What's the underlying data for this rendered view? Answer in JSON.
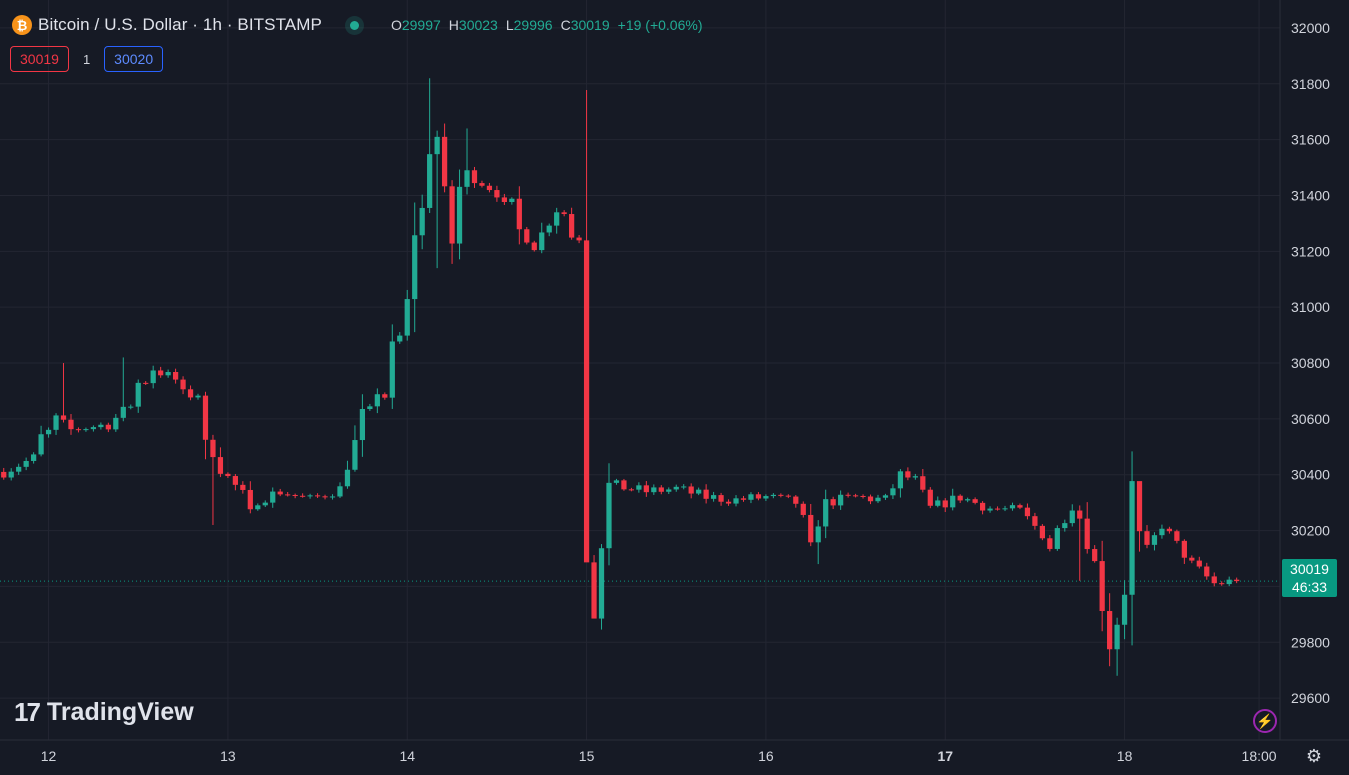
{
  "header": {
    "symbol_icon": "bitcoin-icon",
    "title": "Bitcoin / U.S. Dollar · 1h · BITSTAMP",
    "ohlc": {
      "o_label": "O",
      "o": "29997",
      "h_label": "H",
      "h": "30023",
      "l_label": "L",
      "l": "29996",
      "c_label": "C",
      "c": "30019",
      "change": "+19 (+0.06%)"
    }
  },
  "quote": {
    "bid": "30019",
    "spread": "1",
    "ask": "30020"
  },
  "price_tag": {
    "price": "30019",
    "countdown": "46:33"
  },
  "brand": {
    "name": "TradingView",
    "icon": "tradingview-logo-icon"
  },
  "toolbar": {
    "lightning_icon": "lightning-icon",
    "settings_icon": "gear-icon"
  },
  "colors": {
    "background": "#161a25",
    "grid": "#232632",
    "up": "#22ab94",
    "down": "#f23645",
    "text": "#d1d4dc"
  },
  "chart_data": {
    "type": "candlestick",
    "title": "Bitcoin / U.S. Dollar · 1h · BITSTAMP",
    "xlabel": "",
    "ylabel": "",
    "ylim": [
      29450,
      32100
    ],
    "y_ticks": [
      29600,
      29800,
      30000,
      30200,
      30400,
      30600,
      30800,
      31000,
      31200,
      31400,
      31600,
      31800,
      32000
    ],
    "x_ticks": [
      {
        "label": "12",
        "hour": 4
      },
      {
        "label": "13",
        "hour": 28
      },
      {
        "label": "14",
        "hour": 52
      },
      {
        "label": "15",
        "hour": 76
      },
      {
        "label": "16",
        "hour": 100
      },
      {
        "label": "17",
        "hour": 124,
        "bold": true
      },
      {
        "label": "18",
        "hour": 148
      },
      {
        "label": "18:00",
        "hour": 166
      }
    ],
    "x_range_hours": [
      -2.5,
      168.8
    ],
    "last_price": 30019,
    "anchors": [
      [
        -2,
        30410
      ],
      [
        2,
        30460
      ],
      [
        5,
        30600
      ],
      [
        7,
        30560
      ],
      [
        9,
        30570
      ],
      [
        12,
        30580
      ],
      [
        15,
        30650
      ],
      [
        18,
        30780
      ],
      [
        21,
        30740
      ],
      [
        24,
        30690
      ],
      [
        27,
        30420
      ],
      [
        31,
        30300
      ],
      [
        35,
        30340
      ],
      [
        39,
        30310
      ],
      [
        43,
        30350
      ],
      [
        46,
        30600
      ],
      [
        49,
        30680
      ],
      [
        52,
        31000
      ],
      [
        54,
        31350
      ],
      [
        56,
        31610
      ],
      [
        58,
        31300
      ],
      [
        60,
        31480
      ],
      [
        63,
        31430
      ],
      [
        66,
        31370
      ],
      [
        69,
        31220
      ],
      [
        72,
        31350
      ],
      [
        75,
        31250
      ],
      [
        76,
        30250
      ],
      [
        78,
        30250
      ],
      [
        80,
        30360
      ],
      [
        84,
        30340
      ],
      [
        88,
        30350
      ],
      [
        92,
        30320
      ],
      [
        96,
        30310
      ],
      [
        100,
        30320
      ],
      [
        104,
        30300
      ],
      [
        106,
        30180
      ],
      [
        108,
        30300
      ],
      [
        112,
        30320
      ],
      [
        116,
        30310
      ],
      [
        118,
        30400
      ],
      [
        120,
        30380
      ],
      [
        122,
        30280
      ],
      [
        124,
        30300
      ],
      [
        126,
        30320
      ],
      [
        130,
        30280
      ],
      [
        134,
        30270
      ],
      [
        138,
        30160
      ],
      [
        141,
        30290
      ],
      [
        144,
        30160
      ],
      [
        146,
        29820
      ],
      [
        148,
        29920
      ],
      [
        149,
        30240
      ],
      [
        151,
        30130
      ],
      [
        153,
        30220
      ],
      [
        155,
        30150
      ],
      [
        157,
        30080
      ],
      [
        160,
        30010
      ],
      [
        163,
        30019
      ]
    ],
    "shocks": [
      [
        3,
        60
      ],
      [
        16,
        70
      ],
      [
        22,
        -70
      ],
      [
        23,
        -40
      ],
      [
        25,
        -180
      ],
      [
        26,
        -60
      ],
      [
        31,
        -80
      ],
      [
        46,
        40
      ],
      [
        48,
        90
      ],
      [
        50,
        150
      ],
      [
        52,
        40
      ],
      [
        53,
        180
      ],
      [
        55,
        160
      ],
      [
        57,
        -80
      ],
      [
        58,
        -140
      ],
      [
        59,
        80
      ],
      [
        65,
        -60
      ],
      [
        67,
        -90
      ],
      [
        68,
        -40
      ],
      [
        73,
        40
      ],
      [
        74,
        -60
      ],
      [
        76,
        -300
      ],
      [
        77,
        -700
      ],
      [
        78,
        -200
      ],
      [
        79,
        120
      ],
      [
        106,
        -80
      ],
      [
        107,
        -20
      ],
      [
        138,
        -40
      ],
      [
        143,
        -100
      ],
      [
        144,
        -150
      ],
      [
        145,
        -130
      ],
      [
        146,
        -70
      ],
      [
        148,
        120
      ],
      [
        149,
        260
      ]
    ],
    "wick_extremes": [
      [
        6,
        "high",
        30800
      ],
      [
        14,
        "high",
        30820
      ],
      [
        26,
        "low",
        30220
      ],
      [
        55,
        "high",
        31820
      ],
      [
        56,
        "low",
        31140
      ],
      [
        60,
        "high",
        31640
      ],
      [
        76,
        "low",
        30120
      ],
      [
        77,
        "low",
        29970
      ],
      [
        107,
        "low",
        30080
      ],
      [
        142,
        "low",
        30020
      ],
      [
        147,
        "low",
        29680
      ],
      [
        150,
        "high",
        30290
      ]
    ],
    "seed": 7
  }
}
